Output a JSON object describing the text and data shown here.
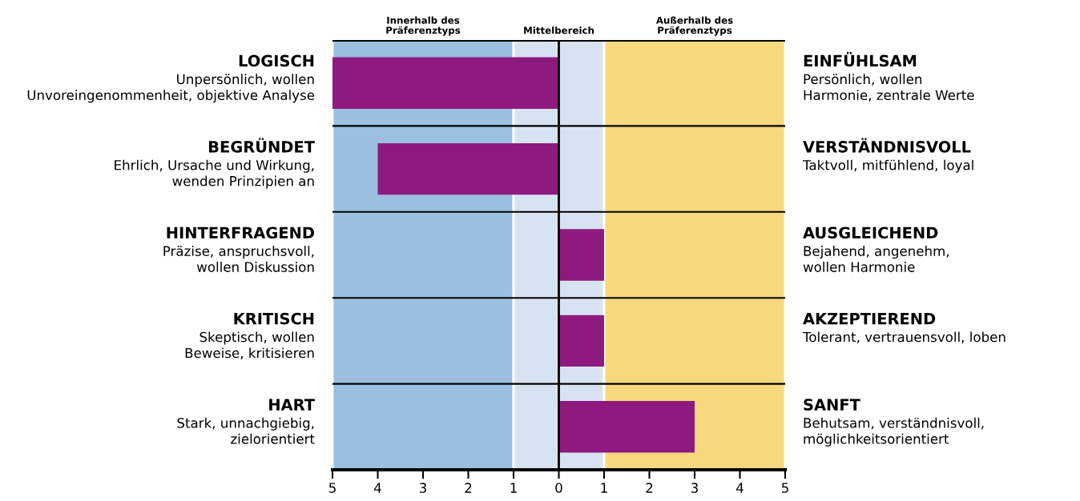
{
  "chart_data": {
    "type": "bar",
    "orientation": "horizontal",
    "categories": [
      "LOGISCH\nUnpersönlich, wollen\nUnvoreingenommenheit, objektive Analyse",
      "BEGRÜNDET\nEhrlich, Ursache und Wirkung,\nwenden Prinzipien an",
      "HINTERFRAGEND\nPräzise, anspruchsvoll,\nwollen Diskussion",
      "KRITISCH\nSkeptisch, wollen\nBeweise, kritisieren",
      "HART\nStark, unnachgiebig,\nzielorientiert"
    ],
    "values": [
      -5,
      -4,
      1,
      1,
      3
    ],
    "color": "#8e1a80",
    "xlim": [
      -5,
      5
    ],
    "xticks": [
      {
        "value": -5,
        "label": "5"
      },
      {
        "value": -4,
        "label": "4"
      },
      {
        "value": -3,
        "label": "3"
      },
      {
        "value": -2,
        "label": "2"
      },
      {
        "value": -1,
        "label": "1"
      },
      0,
      1,
      2,
      3,
      4,
      5
    ],
    "bands": [
      {
        "axis": "x",
        "from": -5,
        "to": -1,
        "label": "Innerhalb des\nPräferenztyps",
        "color": "#9bbfe0"
      },
      {
        "axis": "x",
        "from": -1,
        "to": 1,
        "label": "Mittelbereich",
        "color": "#d8e3f2"
      },
      {
        "axis": "x",
        "from": 1,
        "to": 5,
        "label": "Außerhalb des\nPräferenztyps",
        "color": "#f8d87e"
      }
    ],
    "ref_lines": [
      {
        "axis": "x",
        "value": 0,
        "color": "#000000"
      }
    ],
    "annotations": [
      "EINFÜHLSAM\nPersönlich, wollen\nHarmonie, zentrale Werte",
      "VERSTÄNDNISVOLL\nTaktvoll, mitfühlend, loyal",
      "AUSGLEICHEND\nBejahend, angenehm,\nwollen Harmonie",
      "AKZEPTIEREND\nTolerant, vertrauensvoll, loben",
      "SANFT\nBehutsam, verständnisvoll,\nmöglichkeitsorientiert"
    ],
    "grid": false
  }
}
